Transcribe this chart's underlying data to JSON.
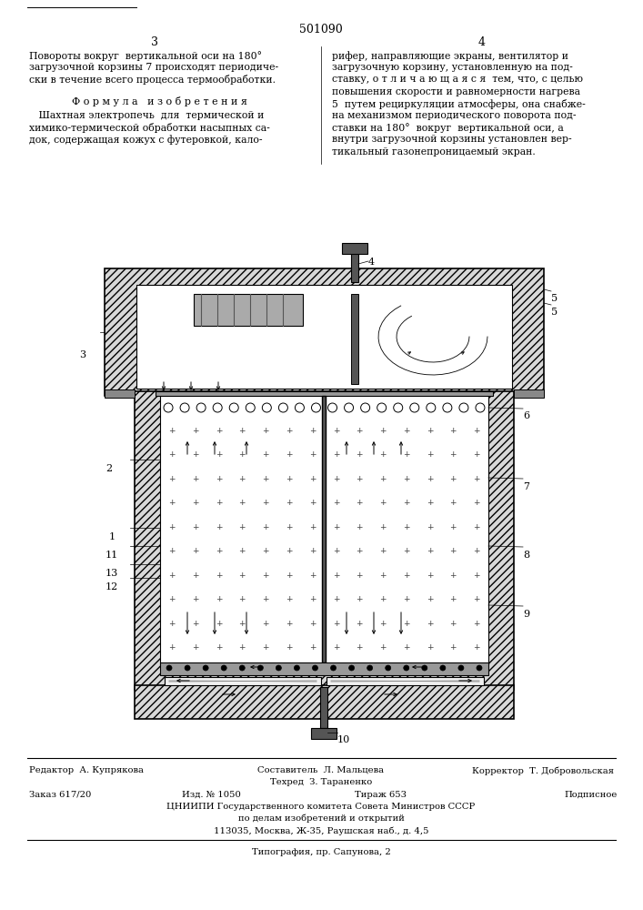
{
  "patent_number": "501090",
  "page_left": "3",
  "page_right": "4",
  "text_col1_lines": [
    "Повороты вокруг  вертикальной оси на 180°",
    "загрузочной корзины 7 происходят периодиче-",
    "ски в течение всего процесса термообработки."
  ],
  "formula_title": "Ф о р м у л а   и з о б р е т е н и я",
  "formula_text_lines": [
    "   Шахтная электропечь  для  термической и",
    "химико-термической обработки насыпных са-",
    "док, содержащая кожух с футеровкой, кало-"
  ],
  "text_col2_lines": [
    "рифер, направляющие экраны, вентилятор и",
    "загрузочную корзину, установленную на под-",
    "ставку, о т л и ч а ю щ а я с я  тем, что, с целью",
    "повышения скорости и равномерности нагрева",
    "5  путем рециркуляции атмосферы, она снабже-",
    "на механизмом периодического поворота под-",
    "ставки на 180°  вокруг  вертикальной оси, а",
    "внутри загрузочной корзины установлен вер-",
    "тикальный газонепроницаемый экран."
  ],
  "footer_editor": "Редактор  А. Купрякова",
  "footer_composer": "Составитель  Л. Мальцева",
  "footer_tekhred": "Техред  З. Тараненко",
  "footer_corrector": "Корректор  Т. Добровольская",
  "footer_zakaz": "Заказ 617/20",
  "footer_izd": "Изд. № 1050",
  "footer_tirazh": "Тираж 653",
  "footer_podpisnoe": "Подписное",
  "footer_org": "ЦНИИПИ Государственного комитета Совета Министров СССР",
  "footer_dela": "по делам изобретений и открытий",
  "footer_addr": "113035, Москва, Ж-35, Раушская наб., д. 4,5",
  "footer_tip": "Типография, пр. Сапунова, 2",
  "bg_color": "#ffffff"
}
